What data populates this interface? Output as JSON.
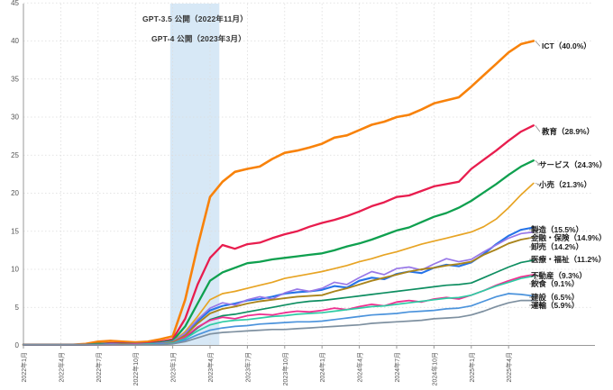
{
  "chart_data": {
    "type": "line",
    "title": "",
    "xlabel": "",
    "ylabel": "",
    "ylim": [
      0,
      45
    ],
    "grid": true,
    "legend_position": "right-end-labels",
    "months_total": 42,
    "x_range_note": "monthly points from 2022-01 to 2025-06",
    "x_labels": [
      "2022年1月",
      "2022年4月",
      "2022年7月",
      "2022年10月",
      "2023年1月",
      "2023年4月",
      "2023年7月",
      "2023年10月",
      "2024年1月",
      "2024年4月",
      "2024年7月",
      "2024年10月",
      "2025年1月",
      "2025年4月"
    ],
    "x_label_month_indices": [
      0,
      3,
      6,
      9,
      12,
      15,
      18,
      21,
      24,
      27,
      30,
      33,
      36,
      39
    ],
    "y_ticks": [
      0,
      5,
      10,
      15,
      20,
      25,
      30,
      35,
      40,
      45
    ],
    "highlight_band": {
      "start_month_index": 11.8,
      "end_month_index": 15.75,
      "color": "#d7e8f6"
    },
    "annotations": [
      {
        "text": "GPT-3.5 公開（2022年11月）"
      },
      {
        "text": "GPT-4 公開（2023年3月）"
      }
    ],
    "series": [
      {
        "key": "ict",
        "name": "ICT",
        "label": "ICT（40.0%）",
        "final_value": 40.0,
        "color": "#f8820a",
        "values": [
          0.1,
          0.1,
          0.1,
          0.1,
          0.1,
          0.2,
          0.5,
          0.6,
          0.5,
          0.4,
          0.5,
          0.8,
          1.2,
          6.0,
          13.0,
          19.5,
          21.5,
          22.8,
          23.2,
          23.5,
          24.5,
          25.3,
          25.6,
          26.0,
          26.5,
          27.3,
          27.6,
          28.3,
          29.0,
          29.4,
          30.0,
          30.3,
          31.0,
          31.8,
          32.2,
          32.6,
          34.0,
          35.5,
          37.0,
          38.5,
          39.6,
          40.0
        ]
      },
      {
        "key": "education",
        "name": "教育",
        "label": "教育（28.9%）",
        "final_value": 28.9,
        "color": "#e81d4e",
        "values": [
          0.1,
          0.1,
          0.1,
          0.1,
          0.1,
          0.1,
          0.2,
          0.3,
          0.3,
          0.2,
          0.3,
          0.5,
          0.8,
          3.5,
          8.0,
          11.5,
          13.2,
          12.7,
          13.3,
          13.5,
          14.1,
          14.6,
          15.0,
          15.6,
          16.1,
          16.5,
          17.0,
          17.6,
          18.3,
          18.8,
          19.5,
          19.7,
          20.3,
          20.9,
          21.2,
          21.5,
          23.2,
          24.4,
          25.6,
          26.9,
          28.1,
          28.9
        ]
      },
      {
        "key": "services",
        "name": "サービス",
        "label": "サービス（24.3%）",
        "final_value": 24.3,
        "color": "#0fa04f",
        "values": [
          0.1,
          0.1,
          0.1,
          0.1,
          0.1,
          0.1,
          0.2,
          0.2,
          0.2,
          0.2,
          0.2,
          0.4,
          0.6,
          2.5,
          5.5,
          8.5,
          9.6,
          10.2,
          10.8,
          11.0,
          11.3,
          11.5,
          11.7,
          11.9,
          12.1,
          12.5,
          13.0,
          13.4,
          13.9,
          14.5,
          15.1,
          15.5,
          16.2,
          16.9,
          17.4,
          18.1,
          19.0,
          20.1,
          21.2,
          22.4,
          23.5,
          24.3
        ]
      },
      {
        "key": "retail",
        "name": "小売",
        "label": "小売（21.3%）",
        "final_value": 21.3,
        "color": "#e7a424",
        "values": [
          0.1,
          0.1,
          0.1,
          0.1,
          0.1,
          0.1,
          0.1,
          0.2,
          0.2,
          0.2,
          0.2,
          0.3,
          0.5,
          1.8,
          3.8,
          6.0,
          6.8,
          7.1,
          7.5,
          7.9,
          8.3,
          8.8,
          9.1,
          9.4,
          9.7,
          10.1,
          10.5,
          11.0,
          11.4,
          11.9,
          12.3,
          12.8,
          13.3,
          13.7,
          14.1,
          14.5,
          14.9,
          15.6,
          16.6,
          18.1,
          19.8,
          21.3
        ]
      },
      {
        "key": "manufacturing",
        "name": "製造",
        "label": "製造（15.5%）",
        "final_value": 15.5,
        "color": "#2573e8",
        "values": [
          0.1,
          0.1,
          0.1,
          0.1,
          0.1,
          0.1,
          0.1,
          0.2,
          0.2,
          0.2,
          0.2,
          0.3,
          0.5,
          1.5,
          3.2,
          4.6,
          5.2,
          5.5,
          5.9,
          6.1,
          6.4,
          6.8,
          7.0,
          7.1,
          7.3,
          7.8,
          7.6,
          8.5,
          8.9,
          8.7,
          9.4,
          9.7,
          9.5,
          10.2,
          10.6,
          10.4,
          10.9,
          12.0,
          13.3,
          14.4,
          15.2,
          15.5
        ]
      },
      {
        "key": "finance-insurance",
        "name": "金融・保険",
        "label": "金融・保険（14.9%）",
        "final_value": 14.9,
        "color": "#9878e8",
        "values": [
          0.1,
          0.1,
          0.1,
          0.1,
          0.1,
          0.1,
          0.1,
          0.2,
          0.2,
          0.2,
          0.2,
          0.3,
          0.5,
          1.6,
          3.4,
          4.9,
          5.6,
          5.3,
          6.0,
          6.4,
          6.1,
          6.9,
          7.4,
          7.1,
          7.5,
          8.3,
          8.0,
          8.9,
          9.7,
          9.3,
          10.1,
          10.3,
          9.9,
          10.7,
          11.4,
          11.0,
          11.3,
          12.3,
          13.2,
          14.1,
          14.7,
          14.9
        ]
      },
      {
        "key": "wholesale",
        "name": "卸売",
        "label": "卸売（14.2%）",
        "final_value": 14.2,
        "color": "#a9841b",
        "values": [
          0.1,
          0.1,
          0.1,
          0.1,
          0.1,
          0.1,
          0.1,
          0.1,
          0.2,
          0.2,
          0.2,
          0.2,
          0.4,
          1.3,
          2.9,
          4.2,
          4.8,
          5.1,
          5.5,
          5.8,
          6.0,
          6.2,
          6.4,
          6.5,
          6.6,
          7.1,
          7.5,
          8.0,
          8.5,
          8.9,
          9.3,
          9.7,
          10.0,
          10.2,
          10.5,
          10.7,
          11.0,
          11.9,
          12.6,
          13.4,
          13.9,
          14.2
        ]
      },
      {
        "key": "medical-welfare",
        "name": "医療・福祉",
        "label": "医療・福祉（11.2%）",
        "final_value": 11.2,
        "color": "#0e8e61",
        "values": [
          0.1,
          0.1,
          0.1,
          0.1,
          0.1,
          0.1,
          0.1,
          0.1,
          0.1,
          0.2,
          0.2,
          0.2,
          0.3,
          1.0,
          2.3,
          3.4,
          3.9,
          4.1,
          4.4,
          4.7,
          5.0,
          5.3,
          5.6,
          5.8,
          5.9,
          6.1,
          6.3,
          6.5,
          6.7,
          6.9,
          7.1,
          7.3,
          7.5,
          7.7,
          7.9,
          8.0,
          8.2,
          8.9,
          9.6,
          10.3,
          10.9,
          11.2
        ]
      },
      {
        "key": "real-estate",
        "name": "不動産",
        "label": "不動産（9.3%）",
        "final_value": 9.3,
        "color": "#ee2f90",
        "values": [
          0.1,
          0.1,
          0.1,
          0.1,
          0.1,
          0.1,
          0.1,
          0.1,
          0.1,
          0.2,
          0.2,
          0.2,
          0.3,
          1.1,
          2.4,
          3.3,
          3.7,
          3.5,
          3.9,
          4.1,
          4.0,
          4.3,
          4.5,
          4.4,
          4.6,
          4.9,
          4.7,
          5.1,
          5.4,
          5.2,
          5.7,
          5.9,
          5.7,
          6.1,
          6.3,
          6.1,
          6.6,
          7.2,
          7.9,
          8.5,
          9.0,
          9.3
        ]
      },
      {
        "key": "food-service",
        "name": "飲食",
        "label": "飲食（9.1%）",
        "final_value": 9.1,
        "color": "#2fcba4",
        "values": [
          0.1,
          0.1,
          0.1,
          0.1,
          0.1,
          0.1,
          0.1,
          0.1,
          0.1,
          0.1,
          0.2,
          0.2,
          0.3,
          0.9,
          1.9,
          2.7,
          3.1,
          3.3,
          3.4,
          3.6,
          3.8,
          3.9,
          4.1,
          4.2,
          4.3,
          4.5,
          4.7,
          4.9,
          5.1,
          5.2,
          5.4,
          5.6,
          5.8,
          6.0,
          6.2,
          6.3,
          6.6,
          7.2,
          7.8,
          8.3,
          8.8,
          9.1
        ]
      },
      {
        "key": "construction",
        "name": "建設",
        "label": "建設（6.5%）",
        "final_value": 6.5,
        "color": "#4b93dc",
        "values": [
          0.1,
          0.1,
          0.1,
          0.1,
          0.1,
          0.1,
          0.1,
          0.1,
          0.1,
          0.1,
          0.1,
          0.2,
          0.2,
          0.7,
          1.4,
          2.0,
          2.3,
          2.5,
          2.6,
          2.8,
          2.9,
          3.0,
          3.1,
          3.1,
          3.2,
          3.4,
          3.6,
          3.8,
          4.0,
          4.1,
          4.2,
          4.4,
          4.5,
          4.6,
          4.8,
          4.9,
          5.2,
          5.8,
          6.4,
          6.8,
          6.7,
          6.5
        ]
      },
      {
        "key": "transport",
        "name": "運輸",
        "label": "運輸（5.9%）",
        "final_value": 5.9,
        "color": "#7e90a0",
        "values": [
          0.1,
          0.1,
          0.1,
          0.1,
          0.1,
          0.1,
          0.1,
          0.1,
          0.1,
          0.1,
          0.1,
          0.1,
          0.2,
          0.5,
          1.0,
          1.5,
          1.7,
          1.8,
          1.9,
          2.0,
          2.1,
          2.1,
          2.2,
          2.3,
          2.4,
          2.5,
          2.6,
          2.7,
          2.9,
          3.0,
          3.1,
          3.2,
          3.3,
          3.5,
          3.6,
          3.7,
          4.0,
          4.5,
          5.1,
          5.6,
          5.9,
          5.9
        ]
      }
    ]
  }
}
